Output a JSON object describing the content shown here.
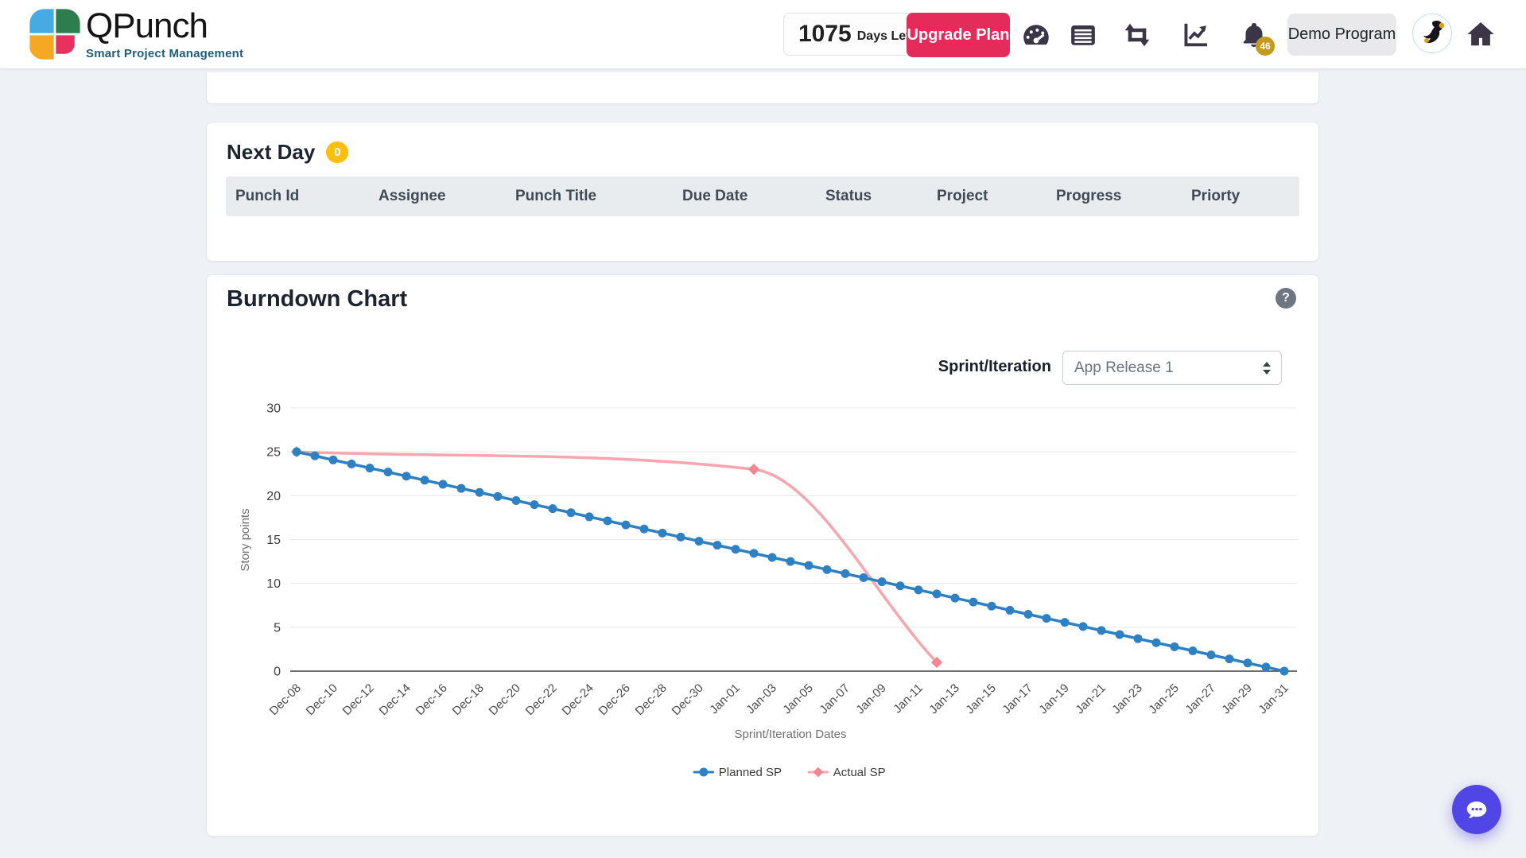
{
  "header": {
    "brand": {
      "name": "QPunch",
      "tagline": "Smart Project Management"
    },
    "days_left": {
      "count": "1075",
      "label": "Days Left"
    },
    "upgrade_button": "Upgrade Plan",
    "notification_count": "46",
    "program_button": "Demo Program"
  },
  "next_day": {
    "title": "Next Day",
    "badge": "0",
    "columns": [
      "Punch Id",
      "Assignee",
      "Punch Title",
      "Due Date",
      "Status",
      "Project",
      "Progress",
      "Priorty"
    ],
    "rows": []
  },
  "burndown": {
    "title": "Burndown Chart",
    "help": "?",
    "sprint_label": "Sprint/Iteration",
    "sprint_value": "App Release 1"
  },
  "colors": {
    "planned_blue": "#2d80c4",
    "actual_pink_line": "#f8a6ae",
    "actual_pink_marker": "#f5858f",
    "upgrade_red": "#e42b5a",
    "badge_yellow": "#fcbf0e",
    "notification_gold": "#c59a1c",
    "chat_indigo": "#4f46e5",
    "logo_blue": "#46abe3",
    "logo_green": "#2e7d4e",
    "logo_orange": "#f6a723",
    "logo_pink": "#e8315f"
  },
  "chart_data": {
    "type": "line",
    "title": "Burndown Chart",
    "xlabel": "Sprint/Iteration Dates",
    "ylabel": "Story points",
    "ylim": [
      0,
      30
    ],
    "y_ticks": [
      0,
      5,
      10,
      15,
      20,
      25,
      30
    ],
    "grid": "horizontal",
    "legend_position": "bottom",
    "x_total_points": 55,
    "x_tick_every": 2,
    "x_tick_labels": [
      "Dec-08",
      "Dec-10",
      "Dec-12",
      "Dec-14",
      "Dec-16",
      "Dec-18",
      "Dec-20",
      "Dec-22",
      "Dec-24",
      "Dec-26",
      "Dec-28",
      "Dec-30",
      "Jan-01",
      "Jan-03",
      "Jan-05",
      "Jan-07",
      "Jan-09",
      "Jan-11",
      "Jan-13",
      "Jan-15",
      "Jan-17",
      "Jan-19",
      "Jan-21",
      "Jan-23",
      "Jan-25",
      "Jan-27",
      "Jan-29",
      "Jan-31"
    ],
    "series": [
      {
        "name": "Planned SP",
        "color": "#2d80c4",
        "marker": "circle",
        "curve": "linear",
        "x_start": 0,
        "x_step": 1,
        "values": [
          25,
          24.54,
          24.07,
          23.61,
          23.15,
          22.69,
          22.22,
          21.76,
          21.3,
          20.83,
          20.37,
          19.91,
          19.44,
          18.98,
          18.52,
          18.06,
          17.59,
          17.13,
          16.67,
          16.2,
          15.74,
          15.28,
          14.81,
          14.35,
          13.89,
          13.43,
          12.96,
          12.5,
          12.04,
          11.57,
          11.11,
          10.65,
          10.19,
          9.72,
          9.26,
          8.8,
          8.33,
          7.87,
          7.41,
          6.94,
          6.48,
          6.02,
          5.56,
          5.09,
          4.63,
          4.17,
          3.7,
          3.24,
          2.78,
          2.31,
          1.85,
          1.39,
          0.93,
          0.46,
          0
        ]
      },
      {
        "name": "Actual SP",
        "color": "#f8a6ae",
        "marker_color": "#f5858f",
        "marker": "diamond",
        "curve": "smooth",
        "x_index": [
          0,
          25,
          35
        ],
        "x_labels": [
          "Dec-08",
          "Jan-02",
          "Jan-12"
        ],
        "values": [
          25,
          23,
          1
        ]
      }
    ]
  }
}
